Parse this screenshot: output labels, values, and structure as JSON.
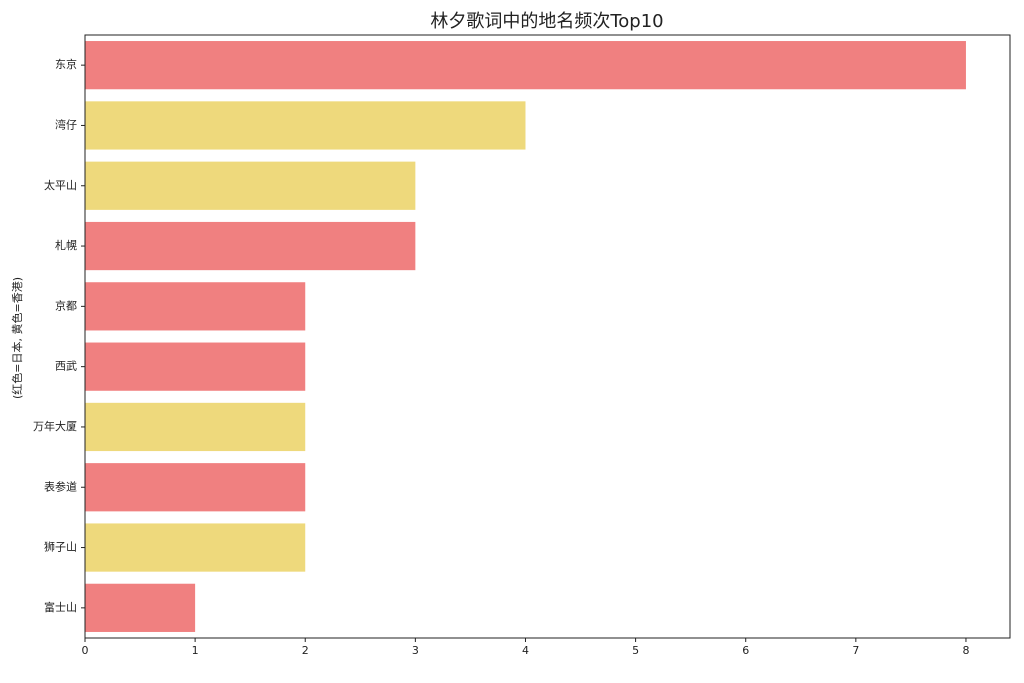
{
  "chart_data": {
    "type": "barh",
    "title": "林夕歌词中的地名频次Top10",
    "y_label": "(红色=日本, 黄色=香港)",
    "categories": [
      "东京",
      "湾仔",
      "太平山",
      "札幌",
      "京都",
      "西武",
      "万年大厦",
      "表参道",
      "狮子山",
      "富士山"
    ],
    "values": [
      8,
      4,
      3,
      3,
      2,
      2,
      2,
      2,
      2,
      1
    ],
    "colors": [
      "#f08080",
      "#eed97c",
      "#eed97c",
      "#f08080",
      "#f08080",
      "#f08080",
      "#eed97c",
      "#f08080",
      "#eed97c",
      "#f08080"
    ],
    "xlim": [
      0,
      8.4
    ],
    "xticks": [
      0,
      1,
      2,
      3,
      4,
      5,
      6,
      7,
      8
    ],
    "grid": false
  }
}
